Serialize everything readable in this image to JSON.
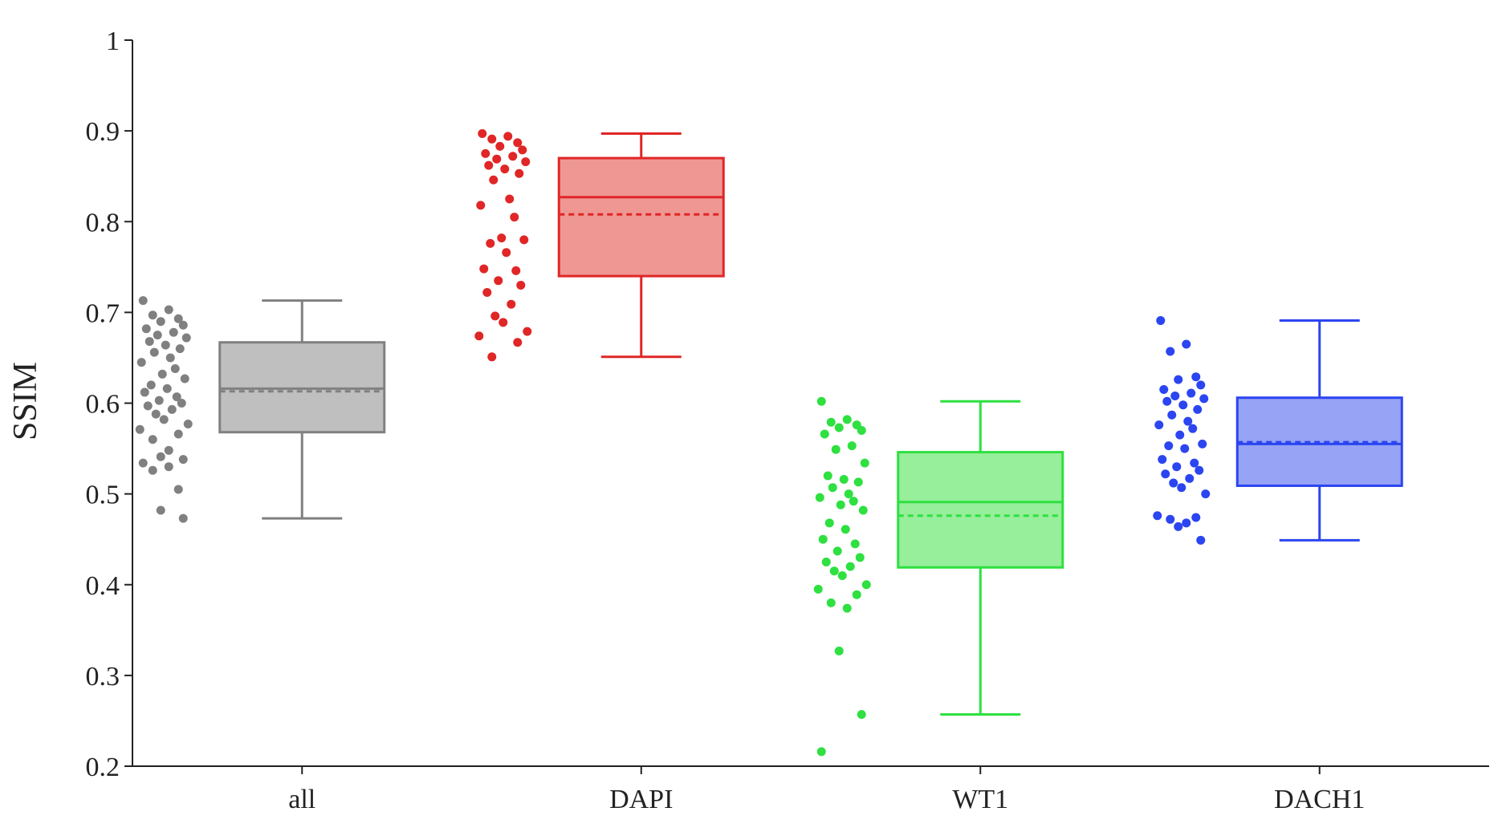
{
  "chart_data": {
    "type": "box",
    "ylabel": "SSIM",
    "xlabel": "",
    "ylim": [
      0.2,
      1.0
    ],
    "yticks": [
      0.2,
      0.3,
      0.4,
      0.5,
      0.6,
      0.7,
      0.8,
      0.9,
      1.0
    ],
    "ytick_labels": [
      "0.2",
      "0.3",
      "0.4",
      "0.5",
      "0.6",
      "0.7",
      "0.8",
      "0.9",
      "1"
    ],
    "categories": [
      "all",
      "DAPI",
      "WT1",
      "DACH1"
    ],
    "grid": false,
    "legend": "none",
    "mean_line": "dashed",
    "series": [
      {
        "category": "all",
        "stroke": "#808080",
        "fill": "#bfbfbf",
        "whisker_low": 0.473,
        "q1": 0.568,
        "median": 0.616,
        "mean": 0.613,
        "q3": 0.667,
        "whisker_high": 0.713,
        "points": [
          0.713,
          0.703,
          0.697,
          0.693,
          0.69,
          0.686,
          0.682,
          0.678,
          0.675,
          0.672,
          0.668,
          0.664,
          0.66,
          0.656,
          0.65,
          0.645,
          0.638,
          0.632,
          0.627,
          0.62,
          0.616,
          0.612,
          0.607,
          0.603,
          0.6,
          0.597,
          0.593,
          0.588,
          0.582,
          0.577,
          0.571,
          0.566,
          0.56,
          0.548,
          0.541,
          0.538,
          0.534,
          0.53,
          0.526,
          0.505,
          0.482,
          0.473
        ]
      },
      {
        "category": "DAPI",
        "stroke": "#e02626",
        "fill": "#ef9793",
        "whisker_low": 0.651,
        "q1": 0.74,
        "median": 0.827,
        "mean": 0.808,
        "q3": 0.87,
        "whisker_high": 0.897,
        "points": [
          0.897,
          0.894,
          0.891,
          0.887,
          0.883,
          0.879,
          0.875,
          0.872,
          0.869,
          0.866,
          0.862,
          0.858,
          0.853,
          0.846,
          0.825,
          0.818,
          0.805,
          0.782,
          0.78,
          0.776,
          0.766,
          0.748,
          0.746,
          0.735,
          0.73,
          0.722,
          0.709,
          0.696,
          0.689,
          0.679,
          0.674,
          0.667,
          0.651
        ]
      },
      {
        "category": "WT1",
        "stroke": "#2ee040",
        "fill": "#97ee9b",
        "whisker_low": 0.257,
        "q1": 0.419,
        "median": 0.491,
        "mean": 0.476,
        "q3": 0.546,
        "whisker_high": 0.602,
        "points": [
          0.602,
          0.582,
          0.579,
          0.576,
          0.573,
          0.57,
          0.566,
          0.553,
          0.549,
          0.534,
          0.52,
          0.516,
          0.513,
          0.507,
          0.5,
          0.496,
          0.492,
          0.488,
          0.482,
          0.468,
          0.461,
          0.45,
          0.445,
          0.437,
          0.43,
          0.425,
          0.42,
          0.415,
          0.41,
          0.4,
          0.395,
          0.389,
          0.38,
          0.374,
          0.327,
          0.257,
          0.216
        ]
      },
      {
        "category": "DACH1",
        "stroke": "#2b45f0",
        "fill": "#97a3f5",
        "whisker_low": 0.449,
        "q1": 0.509,
        "median": 0.555,
        "mean": 0.557,
        "q3": 0.606,
        "whisker_high": 0.691,
        "points": [
          0.691,
          0.665,
          0.657,
          0.629,
          0.626,
          0.62,
          0.615,
          0.611,
          0.608,
          0.605,
          0.602,
          0.598,
          0.593,
          0.587,
          0.58,
          0.576,
          0.572,
          0.565,
          0.555,
          0.553,
          0.55,
          0.538,
          0.534,
          0.53,
          0.526,
          0.522,
          0.517,
          0.512,
          0.507,
          0.5,
          0.476,
          0.474,
          0.472,
          0.468,
          0.464,
          0.449
        ]
      }
    ]
  }
}
